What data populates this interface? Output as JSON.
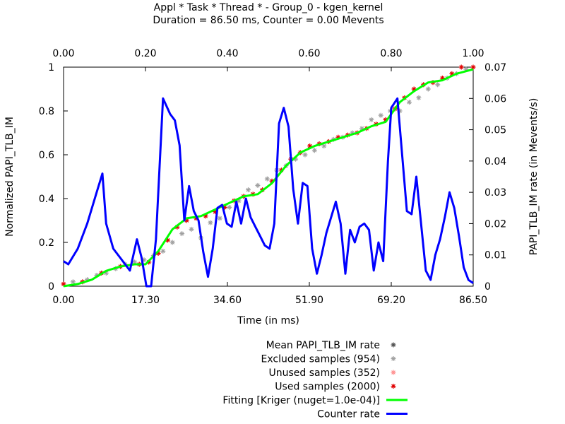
{
  "chart_data": {
    "type": "line",
    "title": "Appl * Task * Thread * - Group_0 - kgen_kernel",
    "subtitle": "Duration = 86.50 ms, Counter = 0.00 Mevents",
    "xlabel": "Time (in ms)",
    "ylabel": "Normalized PAPI_TLB_IM",
    "y2label": "PAPI_TLB_IM rate (in Mevents/s)",
    "xlim": [
      0,
      86.5
    ],
    "ylim": [
      0,
      1
    ],
    "y2lim": [
      0,
      0.07
    ],
    "x2lim": [
      0,
      1
    ],
    "x_ticks": [
      "0.00",
      "17.30",
      "34.60",
      "51.90",
      "69.20",
      "86.50"
    ],
    "x2_ticks": [
      "0.00",
      "0.20",
      "0.40",
      "0.60",
      "0.80",
      "1.00"
    ],
    "y_ticks": [
      "0",
      "0.2",
      "0.4",
      "0.6",
      "0.8",
      "1"
    ],
    "y2_ticks": [
      "0",
      "0.01",
      "0.02",
      "0.03",
      "0.04",
      "0.05",
      "0.06",
      "0.07"
    ],
    "grid": false,
    "legend": {
      "placement": "bottom"
    },
    "colors": {
      "mean": "#505050",
      "excluded": "#a0a0a0",
      "unused": "#ff9090",
      "used": "#e00000",
      "fitting": "#00ff00",
      "counter": "#0000ff"
    },
    "series": [
      {
        "name": "Mean PAPI_TLB_IM rate",
        "kind": "marker",
        "axis": "left",
        "x": [],
        "y": []
      },
      {
        "name": "Excluded samples (954)",
        "kind": "marker",
        "axis": "left",
        "x": [
          2,
          5,
          7,
          9,
          11,
          13,
          15,
          17,
          19,
          21,
          23,
          25,
          27,
          29,
          31,
          33,
          35,
          37,
          39,
          41,
          43,
          45,
          47,
          49,
          51,
          53,
          55,
          57,
          59,
          61,
          63,
          65,
          67,
          69,
          71,
          73,
          75,
          77,
          79,
          81,
          83,
          85
        ],
        "y": [
          0.02,
          0.03,
          0.05,
          0.06,
          0.08,
          0.1,
          0.11,
          0.12,
          0.14,
          0.16,
          0.2,
          0.24,
          0.26,
          0.22,
          0.29,
          0.31,
          0.36,
          0.39,
          0.44,
          0.46,
          0.49,
          0.53,
          0.55,
          0.58,
          0.6,
          0.62,
          0.64,
          0.67,
          0.68,
          0.7,
          0.72,
          0.76,
          0.78,
          0.8,
          0.8,
          0.84,
          0.86,
          0.9,
          0.92,
          0.95,
          0.97,
          0.99
        ]
      },
      {
        "name": "Unused samples (352)",
        "kind": "marker",
        "axis": "left",
        "x": [],
        "y": []
      },
      {
        "name": "Used samples (2000)",
        "kind": "marker",
        "axis": "left",
        "x": [
          0,
          4,
          8,
          12,
          16,
          18,
          20,
          22,
          24,
          26,
          28,
          30,
          32,
          34,
          36,
          38,
          40,
          42,
          44,
          46,
          48,
          50,
          52,
          54,
          56,
          58,
          60,
          62,
          64,
          66,
          68,
          70,
          72,
          74,
          76,
          78,
          80,
          82,
          84,
          86.5
        ],
        "y": [
          0.01,
          0.02,
          0.06,
          0.09,
          0.1,
          0.11,
          0.15,
          0.21,
          0.27,
          0.3,
          0.31,
          0.32,
          0.34,
          0.36,
          0.39,
          0.41,
          0.42,
          0.44,
          0.48,
          0.53,
          0.58,
          0.61,
          0.64,
          0.65,
          0.66,
          0.68,
          0.69,
          0.7,
          0.72,
          0.74,
          0.76,
          0.81,
          0.86,
          0.9,
          0.92,
          0.93,
          0.95,
          0.97,
          1.0,
          1.0
        ]
      },
      {
        "name": "Fitting [Kriger (nuget=1.0e-04)]",
        "kind": "line",
        "axis": "left",
        "x": [
          0,
          3,
          6,
          9,
          12,
          15,
          17.3,
          20,
          23,
          26,
          29,
          32,
          35,
          38,
          41,
          44,
          47,
          50,
          53,
          56,
          59,
          62,
          65,
          68,
          71,
          74,
          77,
          80,
          83,
          86.5
        ],
        "y": [
          0.0,
          0.01,
          0.03,
          0.07,
          0.09,
          0.1,
          0.1,
          0.16,
          0.26,
          0.31,
          0.32,
          0.35,
          0.38,
          0.41,
          0.42,
          0.47,
          0.55,
          0.61,
          0.64,
          0.66,
          0.68,
          0.7,
          0.73,
          0.75,
          0.84,
          0.89,
          0.93,
          0.94,
          0.97,
          0.99
        ]
      },
      {
        "name": "Counter rate",
        "kind": "line",
        "axis": "right",
        "x": [
          0,
          1,
          3,
          5,
          7,
          8.2,
          9,
          10.5,
          12,
          13,
          14,
          15.5,
          16.5,
          17.5,
          18.5,
          19.5,
          21,
          22.5,
          23.5,
          24.5,
          25.5,
          26.5,
          27.5,
          28.5,
          29.5,
          30.5,
          31.5,
          32.5,
          33.5,
          34.5,
          35.5,
          36.5,
          37.5,
          38.5,
          39.5,
          40.5,
          41.5,
          42.5,
          43.5,
          44.5,
          45.5,
          46.5,
          47.5,
          48.5,
          49.5,
          50.5,
          51.5,
          52.5,
          53.5,
          54.5,
          55.5,
          56.5,
          57.5,
          58.5,
          59.5,
          60.5,
          61.5,
          62.5,
          63.5,
          64.5,
          65.5,
          66.5,
          67.5,
          68.5,
          69.2,
          70.5,
          71.5,
          72.5,
          73.5,
          74.5,
          75.5,
          76.5,
          77.5,
          78.5,
          79.5,
          80.5,
          81.5,
          82.5,
          83.5,
          84.5,
          85.5,
          86.5
        ],
        "y": [
          0.008,
          0.007,
          0.012,
          0.02,
          0.03,
          0.036,
          0.02,
          0.012,
          0.009,
          0.007,
          0.005,
          0.015,
          0.009,
          0.0,
          0.0,
          0.015,
          0.06,
          0.055,
          0.053,
          0.045,
          0.021,
          0.032,
          0.024,
          0.021,
          0.011,
          0.003,
          0.012,
          0.025,
          0.026,
          0.02,
          0.019,
          0.027,
          0.02,
          0.028,
          0.022,
          0.019,
          0.016,
          0.013,
          0.012,
          0.02,
          0.052,
          0.057,
          0.051,
          0.031,
          0.02,
          0.033,
          0.032,
          0.012,
          0.004,
          0.01,
          0.017,
          0.022,
          0.027,
          0.02,
          0.004,
          0.018,
          0.014,
          0.019,
          0.02,
          0.018,
          0.005,
          0.014,
          0.008,
          0.04,
          0.057,
          0.06,
          0.042,
          0.024,
          0.023,
          0.035,
          0.02,
          0.005,
          0.002,
          0.01,
          0.015,
          0.022,
          0.03,
          0.025,
          0.016,
          0.006,
          0.002,
          0.001
        ]
      }
    ]
  }
}
